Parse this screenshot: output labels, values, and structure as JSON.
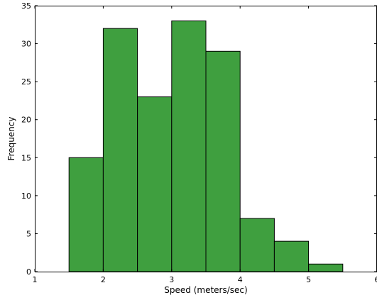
{
  "chart_data": {
    "type": "bar",
    "title": "",
    "xlabel": "Speed (meters/sec)",
    "ylabel": "Frequency",
    "xlim": [
      1,
      6
    ],
    "ylim": [
      0,
      35
    ],
    "xticks": [
      1,
      2,
      3,
      4,
      5,
      6
    ],
    "yticks": [
      0,
      5,
      10,
      15,
      20,
      25,
      30,
      35
    ],
    "bin_width": 0.5,
    "bins": [
      {
        "x0": 1.5,
        "x1": 2.0,
        "value": 15
      },
      {
        "x0": 2.0,
        "x1": 2.5,
        "value": 32
      },
      {
        "x0": 2.5,
        "x1": 3.0,
        "value": 23
      },
      {
        "x0": 3.0,
        "x1": 3.5,
        "value": 33
      },
      {
        "x0": 3.5,
        "x1": 4.0,
        "value": 29
      },
      {
        "x0": 4.0,
        "x1": 4.5,
        "value": 7
      },
      {
        "x0": 4.5,
        "x1": 5.0,
        "value": 4
      },
      {
        "x0": 5.0,
        "x1": 5.5,
        "value": 1
      }
    ],
    "bar_color": "#3f9f3f",
    "edge_color": "#000000",
    "grid": false,
    "legend": "none"
  }
}
